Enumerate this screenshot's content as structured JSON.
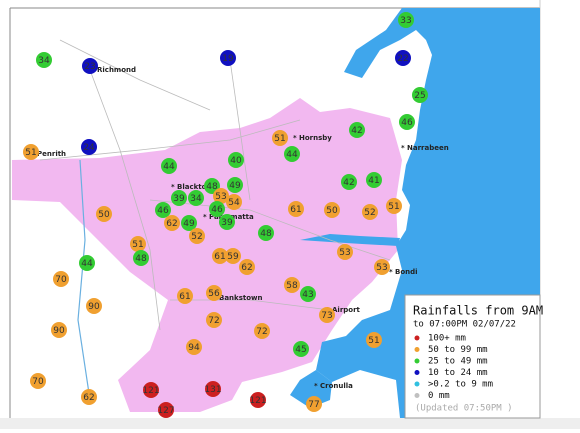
{
  "map": {
    "places": [
      "Richmond",
      "Penrith",
      "Hornsby",
      "Narrabeen",
      "Blacktown",
      "Parramatta",
      "Bankstown",
      "Airport",
      "Bondi",
      "Cronulla"
    ],
    "markers": [
      {
        "value": 33,
        "color": "#33cc33"
      },
      {
        "value": 34,
        "color": "#33cc33"
      },
      {
        "value": 23,
        "color": "#1010c0"
      },
      {
        "value": 19,
        "color": "#1010c0"
      },
      {
        "value": 22,
        "color": "#1010c0"
      },
      {
        "value": 25,
        "color": "#33cc33"
      },
      {
        "value": 46,
        "color": "#33cc33"
      },
      {
        "value": 42,
        "color": "#33cc33"
      },
      {
        "value": 51,
        "color": "#f0a030"
      },
      {
        "value": 44,
        "color": "#33cc33"
      },
      {
        "value": 24,
        "color": "#1010c0"
      },
      {
        "value": 51,
        "color": "#f0a030"
      },
      {
        "value": 40,
        "color": "#33cc33"
      },
      {
        "value": 44,
        "color": "#33cc33"
      },
      {
        "value": 42,
        "color": "#33cc33"
      },
      {
        "value": 41,
        "color": "#33cc33"
      },
      {
        "value": 48,
        "color": "#33cc33"
      },
      {
        "value": 49,
        "color": "#33cc33"
      },
      {
        "value": 39,
        "color": "#33cc33"
      },
      {
        "value": 34,
        "color": "#33cc33"
      },
      {
        "value": 53,
        "color": "#f0a030"
      },
      {
        "value": 54,
        "color": "#f0a030"
      },
      {
        "value": 46,
        "color": "#33cc33"
      },
      {
        "value": 46,
        "color": "#33cc33"
      },
      {
        "value": 50,
        "color": "#f0a030"
      },
      {
        "value": 61,
        "color": "#f0a030"
      },
      {
        "value": 50,
        "color": "#f0a030"
      },
      {
        "value": 52,
        "color": "#f0a030"
      },
      {
        "value": 51,
        "color": "#f0a030"
      },
      {
        "value": 62,
        "color": "#f0a030"
      },
      {
        "value": 49,
        "color": "#33cc33"
      },
      {
        "value": 39,
        "color": "#33cc33"
      },
      {
        "value": 48,
        "color": "#33cc33"
      },
      {
        "value": 52,
        "color": "#f0a030"
      },
      {
        "value": 51,
        "color": "#f0a030"
      },
      {
        "value": 48,
        "color": "#33cc33"
      },
      {
        "value": 61,
        "color": "#f0a030"
      },
      {
        "value": 59,
        "color": "#f0a030"
      },
      {
        "value": 62,
        "color": "#f0a030"
      },
      {
        "value": 53,
        "color": "#f0a030"
      },
      {
        "value": 53,
        "color": "#f0a030"
      },
      {
        "value": 44,
        "color": "#33cc33"
      },
      {
        "value": 70,
        "color": "#f0a030"
      },
      {
        "value": 58,
        "color": "#f0a030"
      },
      {
        "value": 43,
        "color": "#33cc33"
      },
      {
        "value": 56,
        "color": "#f0a030"
      },
      {
        "value": 61,
        "color": "#f0a030"
      },
      {
        "value": 90,
        "color": "#f0a030"
      },
      {
        "value": 72,
        "color": "#f0a030"
      },
      {
        "value": 73,
        "color": "#f0a030"
      },
      {
        "value": 72,
        "color": "#f0a030"
      },
      {
        "value": 90,
        "color": "#f0a030"
      },
      {
        "value": 51,
        "color": "#f0a030"
      },
      {
        "value": 94,
        "color": "#f0a030"
      },
      {
        "value": 45,
        "color": "#33cc33"
      },
      {
        "value": 70,
        "color": "#f0a030"
      },
      {
        "value": 121,
        "color": "#cc2020"
      },
      {
        "value": 131,
        "color": "#cc2020"
      },
      {
        "value": 127,
        "color": "#cc2020"
      },
      {
        "value": 121,
        "color": "#cc2020"
      },
      {
        "value": 62,
        "color": "#f0a030"
      },
      {
        "value": 77,
        "color": "#f0a030"
      }
    ],
    "legend": {
      "title": "Rainfalls from 9AM",
      "subtitle": "to 07:00PM 02/07/22",
      "entries": [
        {
          "label": "100+ mm",
          "color": "#cc2020"
        },
        {
          "label": "50  to 99 mm",
          "color": "#f0a030"
        },
        {
          "label": "25  to 49 mm",
          "color": "#33cc33"
        },
        {
          "label": "10  to 24 mm",
          "color": "#1010c0"
        },
        {
          "label": ">0.2 to 9 mm",
          "color": "#30c0e0"
        },
        {
          "label": "0 mm",
          "color": "#c0c0c0"
        }
      ],
      "updated": "(Updated 07:50PM )"
    }
  }
}
